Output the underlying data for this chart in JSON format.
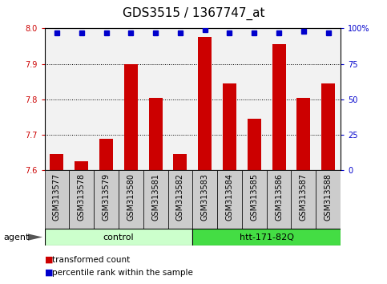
{
  "title": "GDS3515 / 1367747_at",
  "categories": [
    "GSM313577",
    "GSM313578",
    "GSM313579",
    "GSM313580",
    "GSM313581",
    "GSM313582",
    "GSM313583",
    "GSM313584",
    "GSM313585",
    "GSM313586",
    "GSM313587",
    "GSM313588"
  ],
  "bar_values": [
    7.645,
    7.625,
    7.69,
    7.9,
    7.805,
    7.645,
    7.975,
    7.845,
    7.745,
    7.955,
    7.805,
    7.845
  ],
  "percentile_values": [
    97,
    97,
    97,
    97,
    97,
    97,
    99,
    97,
    97,
    97,
    98,
    97
  ],
  "bar_color": "#cc0000",
  "dot_color": "#0000cc",
  "ylim_left": [
    7.6,
    8.0
  ],
  "ylim_right": [
    0,
    100
  ],
  "yticks_left": [
    7.6,
    7.7,
    7.8,
    7.9,
    8.0
  ],
  "yticks_right": [
    0,
    25,
    50,
    75,
    100
  ],
  "yticklabels_right": [
    "0",
    "25",
    "50",
    "75",
    "100%"
  ],
  "grid_values": [
    7.7,
    7.8,
    7.9
  ],
  "groups": [
    {
      "label": "control",
      "start": 0,
      "end": 5,
      "color": "#ccffcc"
    },
    {
      "label": "htt-171-82Q",
      "start": 6,
      "end": 11,
      "color": "#44dd44"
    }
  ],
  "agent_label": "agent",
  "legend_items": [
    {
      "label": "transformed count",
      "color": "#cc0000"
    },
    {
      "label": "percentile rank within the sample",
      "color": "#0000cc"
    }
  ],
  "background_color": "#ffffff",
  "bar_width": 0.55,
  "title_fontsize": 11,
  "tick_fontsize": 7,
  "label_fontsize": 7.5
}
